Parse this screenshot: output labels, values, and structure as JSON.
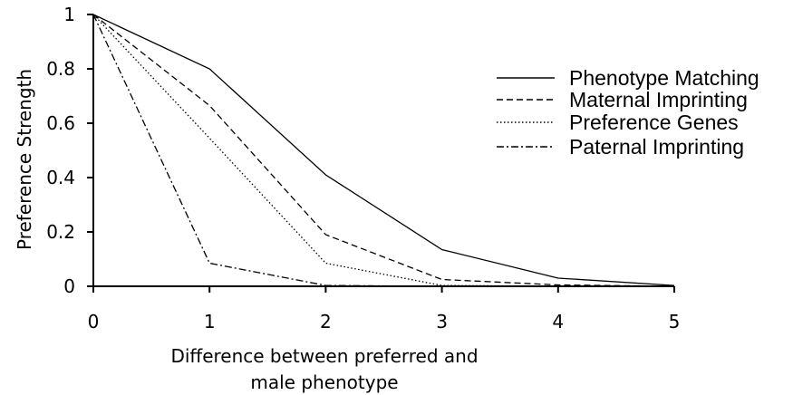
{
  "chart_data": {
    "type": "line",
    "title": "",
    "xlabel": [
      "Difference between preferred and",
      "male phenotype"
    ],
    "ylabel": "Preference Strength",
    "xlim": [
      0,
      5
    ],
    "ylim": [
      0,
      1
    ],
    "x_ticks": [
      "0",
      "1",
      "2",
      "3",
      "4",
      "5"
    ],
    "y_ticks": [
      "0",
      "0.2",
      "0.4",
      "0.6",
      "0.8",
      "1"
    ],
    "x": [
      0,
      1,
      2,
      3,
      4,
      5
    ],
    "grid": false,
    "legend_position": "right",
    "series": [
      {
        "name": "Phenotype Matching",
        "dash": "solid",
        "values": [
          1,
          0.8,
          0.41,
          0.135,
          0.03,
          0.003
        ]
      },
      {
        "name": "Maternal Imprinting",
        "dash": "dashed",
        "values": [
          1,
          0.665,
          0.19,
          0.025,
          0.005,
          0
        ]
      },
      {
        "name": "Preference Genes",
        "dash": "dotted",
        "values": [
          1,
          0.545,
          0.085,
          0.003,
          0,
          0
        ]
      },
      {
        "name": "Paternal Imprinting",
        "dash": "dashdot",
        "values": [
          1,
          0.085,
          0.003,
          0,
          0,
          0
        ]
      }
    ]
  }
}
